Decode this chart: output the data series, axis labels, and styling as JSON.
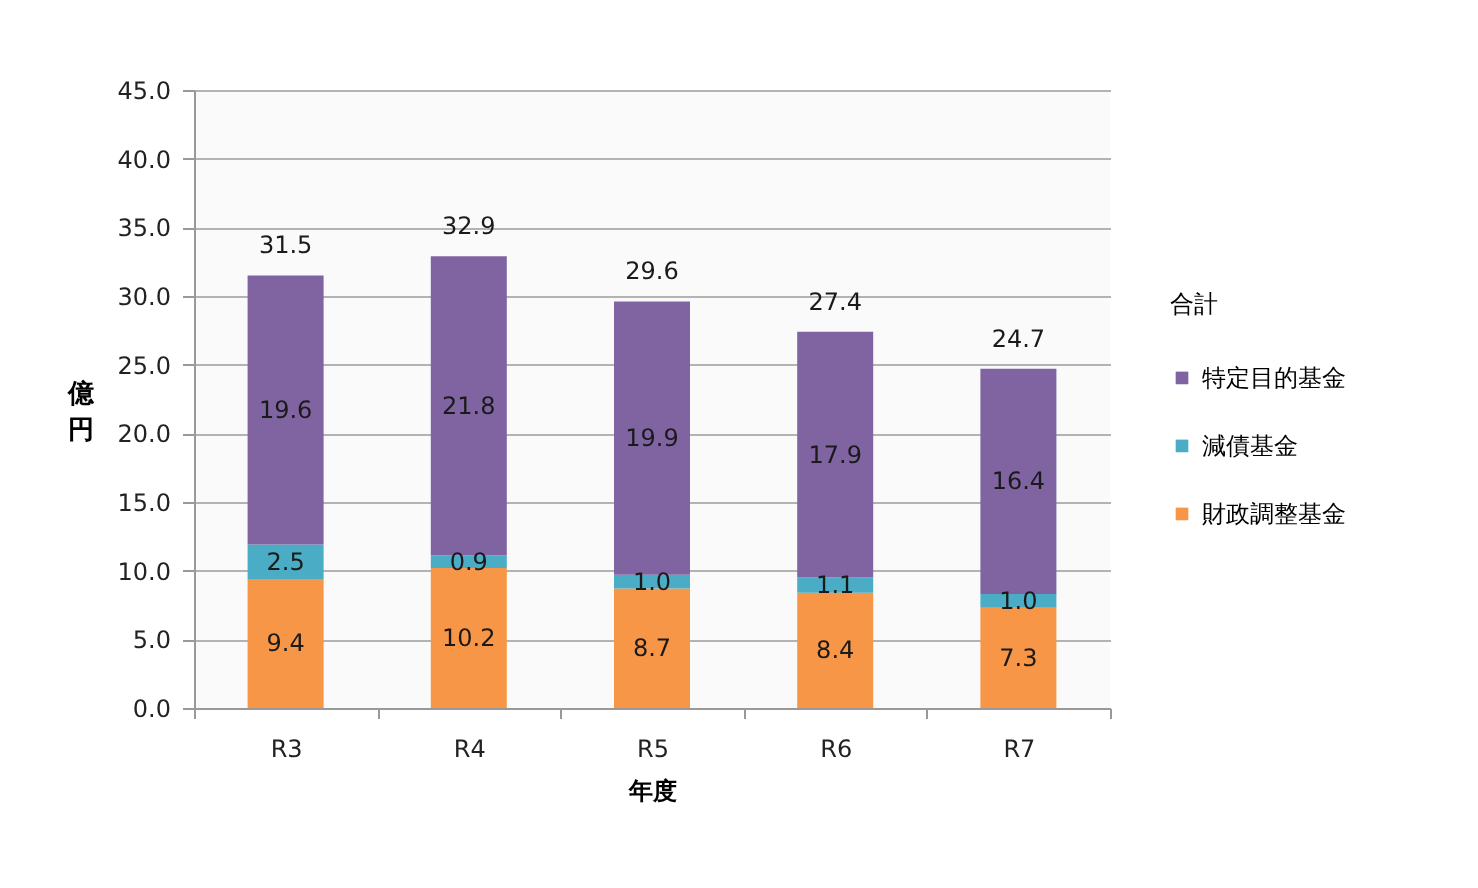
{
  "chart_data": {
    "type": "bar",
    "stacked": true,
    "xlabel": "年度",
    "ylabel": "億円",
    "legend_title": "合計",
    "categories": [
      "R3",
      "R4",
      "R5",
      "R6",
      "R7"
    ],
    "series": [
      {
        "name": "財政調整基金",
        "color": "#f79646",
        "values": [
          9.4,
          10.2,
          8.7,
          8.4,
          7.3
        ],
        "value_labels": [
          "9.4",
          "10.2",
          "8.7",
          "8.4",
          "7.3"
        ]
      },
      {
        "name": "減債基金",
        "color": "#4bacc6",
        "values": [
          2.5,
          0.9,
          1.0,
          1.1,
          1.0
        ],
        "value_labels": [
          "2.5",
          "0.9",
          "1.0",
          "1.1",
          "1.0"
        ]
      },
      {
        "name": "特定目的基金",
        "color": "#8064a2",
        "values": [
          19.6,
          21.8,
          19.9,
          17.9,
          16.4
        ],
        "value_labels": [
          "19.6",
          "21.8",
          "19.9",
          "17.9",
          "16.4"
        ]
      }
    ],
    "totals": [
      "31.5",
      "32.9",
      "29.6",
      "27.4",
      "24.7"
    ],
    "ylim": [
      0,
      45
    ],
    "yticks": [
      {
        "value": 0,
        "label": "0.0"
      },
      {
        "value": 5,
        "label": "5.0"
      },
      {
        "value": 10,
        "label": "10.0"
      },
      {
        "value": 15,
        "label": "15.0"
      },
      {
        "value": 20,
        "label": "20.0"
      },
      {
        "value": 25,
        "label": "25.0"
      },
      {
        "value": 30,
        "label": "30.0"
      },
      {
        "value": 35,
        "label": "35.0"
      },
      {
        "value": 40,
        "label": "40.0"
      },
      {
        "value": 45,
        "label": "45.0"
      }
    ],
    "grid": "y",
    "legend": "right"
  }
}
